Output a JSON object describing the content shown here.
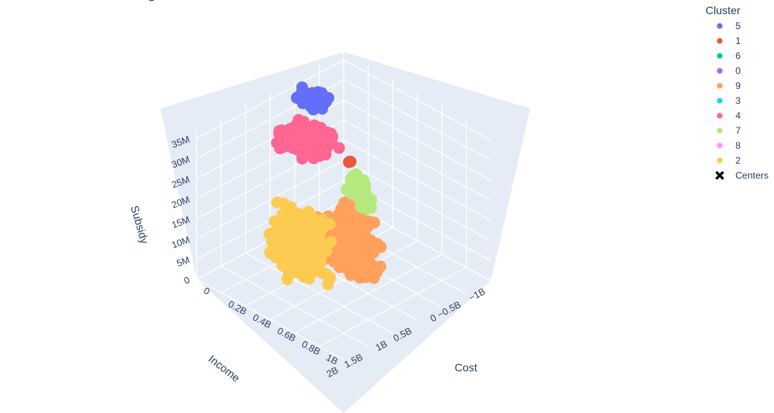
{
  "chart_data": {
    "type": "scatter3d",
    "title_fragment": "g",
    "axes": {
      "x": {
        "title": "Cost",
        "ticks": [
          "0",
          "0.2B",
          "0.4B",
          "0.6B",
          "0.8B",
          "1B"
        ],
        "range": [
          0,
          1200000000
        ]
      },
      "y": {
        "title": "Income",
        "ticks": [
          "−1B",
          "−0.5B",
          "0",
          "0.5B",
          "1B",
          "1.5B",
          "2B"
        ],
        "range": [
          -1000000000,
          2000000000
        ]
      },
      "z": {
        "title": "Subsidy",
        "ticks": [
          "0",
          "5M",
          "10M",
          "15M",
          "20M",
          "25M",
          "30M",
          "35M"
        ],
        "range": [
          0,
          37000000
        ]
      }
    },
    "legend": {
      "title": "Cluster",
      "placement": "top-right",
      "items": [
        {
          "label": "5",
          "color": "#636efa",
          "symbol": "circle"
        },
        {
          "label": "1",
          "color": "#EF553B",
          "symbol": "circle"
        },
        {
          "label": "6",
          "color": "#00cc96",
          "symbol": "circle"
        },
        {
          "label": "0",
          "color": "#ab63fa",
          "symbol": "circle"
        },
        {
          "label": "9",
          "color": "#FFA15A",
          "symbol": "circle"
        },
        {
          "label": "3",
          "color": "#19d3f3",
          "symbol": "circle"
        },
        {
          "label": "4",
          "color": "#FF6692",
          "symbol": "circle"
        },
        {
          "label": "7",
          "color": "#B6E880",
          "symbol": "circle"
        },
        {
          "label": "8",
          "color": "#FF97FF",
          "symbol": "circle"
        },
        {
          "label": "2",
          "color": "#FECB52",
          "symbol": "circle"
        },
        {
          "label": "Centers",
          "color": "#000000",
          "symbol": "x"
        }
      ]
    },
    "series": [
      {
        "name": "5",
        "color": "#636efa",
        "center": [
          0.17,
          0.05,
          35000000
        ],
        "spread": [
          0.12,
          0.22,
          1500000
        ],
        "n": 90
      },
      {
        "name": "4",
        "color": "#FF6692",
        "center": [
          0.25,
          0.35,
          28000000
        ],
        "spread": [
          0.22,
          0.42,
          3000000
        ],
        "n": 260
      },
      {
        "name": "1",
        "color": "#EF553B",
        "center": [
          0.55,
          0.25,
          27000000
        ],
        "spread": [
          0.02,
          0.02,
          300000
        ],
        "n": 3
      },
      {
        "name": "7",
        "color": "#B6E880",
        "center": [
          0.32,
          -0.5,
          9000000
        ],
        "spread": [
          0.1,
          0.18,
          8000000
        ],
        "n": 110
      },
      {
        "name": "9",
        "color": "#FFA15A",
        "center": [
          0.6,
          0.42,
          9000000
        ],
        "spread": [
          0.26,
          0.3,
          9500000
        ],
        "n": 420
      },
      {
        "name": "2",
        "color": "#FECB52",
        "center": [
          0.48,
          1.1,
          11000000
        ],
        "spread": [
          0.26,
          0.38,
          10500000
        ],
        "n": 420
      }
    ]
  }
}
